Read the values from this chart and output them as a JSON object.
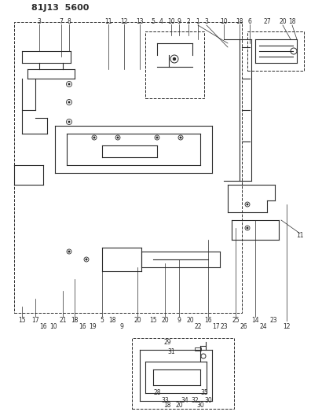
{
  "title": "81J13 5600",
  "bg_color": "#ffffff",
  "line_color": "#2a2a2a",
  "fig_width": 3.96,
  "fig_height": 5.33,
  "dpi": 100
}
